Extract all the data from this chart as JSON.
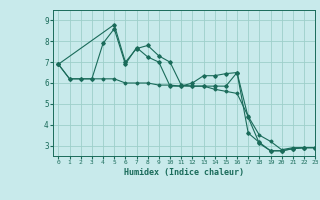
{
  "bg_color": "#c8eaeb",
  "grid_color": "#9ecfca",
  "line_color": "#1a6b5a",
  "marker_color": "#1a6b5a",
  "xlabel": "Humidex (Indice chaleur)",
  "xlim": [
    -0.5,
    23
  ],
  "ylim": [
    2.5,
    9.5
  ],
  "yticks": [
    3,
    4,
    5,
    6,
    7,
    8,
    9
  ],
  "xticks": [
    0,
    1,
    2,
    3,
    4,
    5,
    6,
    7,
    8,
    9,
    10,
    11,
    12,
    13,
    14,
    15,
    16,
    17,
    18,
    19,
    20,
    21,
    22,
    23
  ],
  "series1": {
    "x": [
      0,
      1,
      2,
      3,
      4,
      5,
      6,
      7,
      8,
      9,
      10,
      11,
      12,
      13,
      14,
      15,
      16,
      17,
      18,
      19,
      20,
      21,
      22,
      23
    ],
    "y": [
      6.9,
      6.2,
      6.2,
      6.2,
      6.2,
      6.2,
      6.0,
      6.0,
      6.0,
      5.9,
      5.9,
      5.85,
      5.85,
      5.85,
      5.7,
      5.6,
      5.5,
      4.4,
      3.5,
      3.2,
      2.8,
      2.9,
      2.9,
      2.9
    ]
  },
  "series2": {
    "x": [
      0,
      1,
      2,
      3,
      4,
      5,
      6,
      7,
      8,
      9,
      10,
      11,
      12,
      13,
      14,
      15,
      16,
      17,
      18,
      19,
      20,
      21,
      22,
      23
    ],
    "y": [
      6.9,
      6.2,
      6.2,
      6.2,
      7.9,
      8.6,
      6.9,
      7.7,
      7.25,
      7.0,
      5.85,
      5.85,
      6.0,
      6.35,
      6.35,
      6.45,
      6.5,
      4.35,
      3.1,
      2.75,
      2.75,
      2.85,
      2.9,
      2.9
    ]
  },
  "series3": {
    "x": [
      0,
      5,
      6,
      7,
      8,
      9,
      10,
      11,
      12,
      13,
      14,
      15,
      16,
      17,
      18,
      19,
      20,
      21,
      22,
      23
    ],
    "y": [
      6.9,
      8.8,
      7.0,
      7.65,
      7.8,
      7.3,
      7.0,
      5.9,
      5.85,
      5.85,
      5.85,
      5.85,
      6.5,
      3.6,
      3.15,
      2.75,
      2.75,
      2.85,
      2.9,
      2.9
    ]
  }
}
